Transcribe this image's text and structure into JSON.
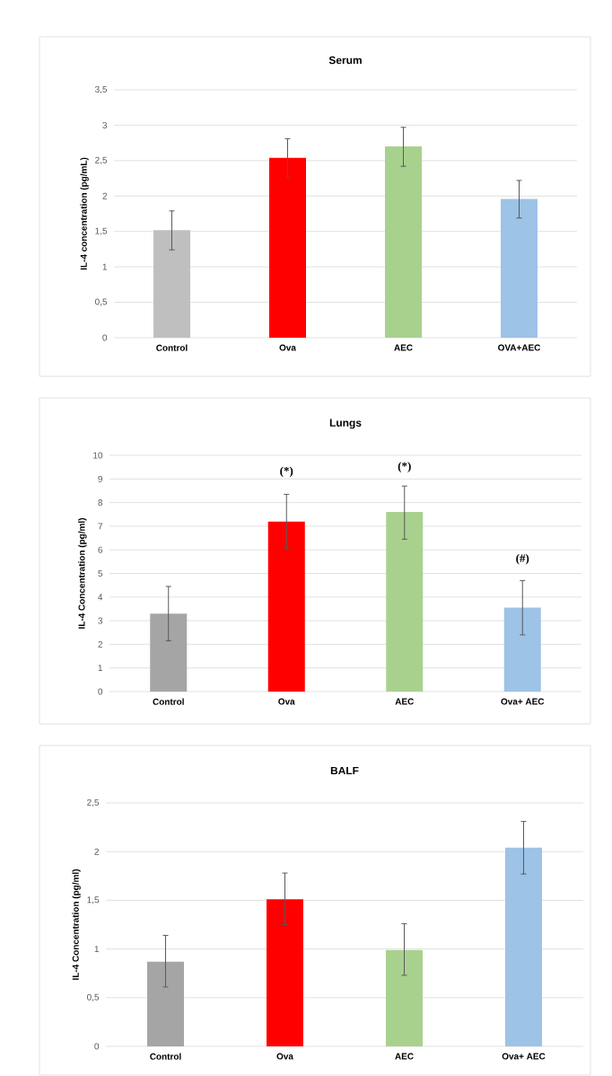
{
  "chart_data": [
    {
      "type": "bar",
      "title": "Serum",
      "ylabel": "IL-4 concentration  (pg/mL)",
      "categories": [
        "Control",
        "Ova",
        "AEC",
        "OVA+AEC"
      ],
      "values": [
        1.52,
        2.54,
        2.7,
        1.96
      ],
      "errors": [
        [
          1.24,
          1.79
        ],
        [
          2.26,
          2.81
        ],
        [
          2.42,
          2.97
        ],
        [
          1.69,
          2.22
        ]
      ],
      "colors": [
        "#bfbfbf",
        "#ff0000",
        "#a9d18e",
        "#9dc3e6"
      ],
      "ylim": [
        0,
        3.5
      ],
      "yticks": [
        0,
        {
          "value": 0.5,
          "label": "0,5"
        },
        1,
        {
          "value": 1.5,
          "label": "1,5"
        },
        2,
        {
          "value": 2.5,
          "label": "2,5"
        },
        3,
        {
          "value": 3.5,
          "label": "3,5"
        }
      ],
      "grid": "y"
    },
    {
      "type": "bar",
      "title": "Lungs",
      "ylabel": "IL-4 Concentration (pg/ml)",
      "categories": [
        "Control",
        "Ova",
        "AEC",
        "Ova+ AEC"
      ],
      "values": [
        3.3,
        7.2,
        7.6,
        3.55
      ],
      "errors": [
        [
          2.15,
          4.45
        ],
        [
          6.05,
          8.35
        ],
        [
          6.45,
          8.7
        ],
        [
          2.4,
          4.7
        ]
      ],
      "colors": [
        "#a5a5a5",
        "#ff0000",
        "#a9d18e",
        "#9dc3e6"
      ],
      "ylim": [
        0,
        10
      ],
      "yticks": [
        0,
        1,
        2,
        3,
        4,
        5,
        6,
        7,
        8,
        9,
        10
      ],
      "grid": "y",
      "annotations": [
        "(*)",
        "(*)",
        "(#)"
      ]
    },
    {
      "type": "bar",
      "title": "BALF",
      "ylabel": "IL-4 Concentration (pg/ml)",
      "categories": [
        "Control",
        "Ova",
        "AEC",
        "Ova+ AEC"
      ],
      "values": [
        0.87,
        1.51,
        0.99,
        2.04
      ],
      "errors": [
        [
          0.61,
          1.14
        ],
        [
          1.25,
          1.78
        ],
        [
          0.73,
          1.26
        ],
        [
          1.77,
          2.31
        ]
      ],
      "colors": [
        "#a5a5a5",
        "#ff0000",
        "#a9d18e",
        "#9dc3e6"
      ],
      "ylim": [
        0,
        2.5
      ],
      "yticks": [
        0,
        {
          "value": 0.5,
          "label": "0,5"
        },
        1,
        {
          "value": 1.5,
          "label": "1,5"
        },
        2,
        {
          "value": 2.5,
          "label": "2,5"
        }
      ],
      "grid": "y"
    }
  ]
}
